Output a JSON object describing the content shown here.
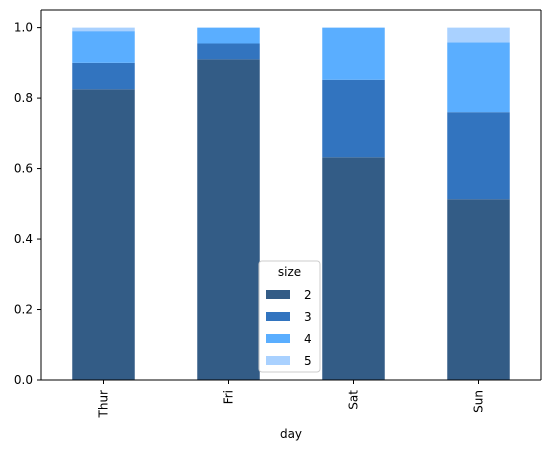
{
  "chart_data": {
    "type": "bar",
    "stacked": true,
    "categories": [
      "Thur",
      "Fri",
      "Sat",
      "Sun"
    ],
    "series": [
      {
        "name": "2",
        "color": "#335c86",
        "values": [
          0.825,
          0.91,
          0.632,
          0.513
        ]
      },
      {
        "name": "3",
        "color": "#3274bf",
        "values": [
          0.075,
          0.045,
          0.22,
          0.247
        ]
      },
      {
        "name": "4",
        "color": "#5aaeff",
        "values": [
          0.09,
          0.045,
          0.148,
          0.198
        ]
      },
      {
        "name": "5",
        "color": "#a9d1ff",
        "values": [
          0.01,
          0.0,
          0.0,
          0.042
        ]
      }
    ],
    "xlabel": "day",
    "ylabel": "",
    "ylim": [
      0,
      1.05
    ],
    "yticks": [
      "0.0",
      "0.2",
      "0.4",
      "0.6",
      "0.8",
      "1.0"
    ],
    "legend": {
      "title": "size",
      "placement": "lower-center"
    },
    "grid": false
  }
}
